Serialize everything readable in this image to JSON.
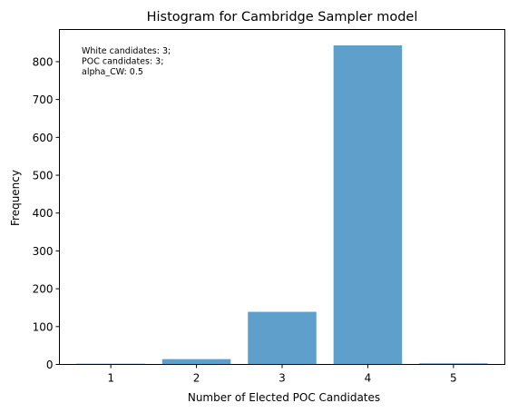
{
  "chart_data": {
    "type": "bar",
    "title": "Histogram for Cambridge Sampler model",
    "xlabel": "Number of Elected POC Candidates",
    "ylabel": "Frequency",
    "categories": [
      "1",
      "2",
      "3",
      "4",
      "5"
    ],
    "values": [
      2,
      14,
      139,
      843,
      3
    ],
    "ylim": [
      0,
      885
    ],
    "xlim": [
      0.4,
      5.6
    ],
    "yticks": [
      0,
      100,
      200,
      300,
      400,
      500,
      600,
      700,
      800
    ],
    "grid": false,
    "bar_color": "#5f9fcb",
    "annotation_lines": [
      "White candidates: 3;",
      "POC candidates: 3;",
      "alpha_CW: 0.5"
    ]
  }
}
